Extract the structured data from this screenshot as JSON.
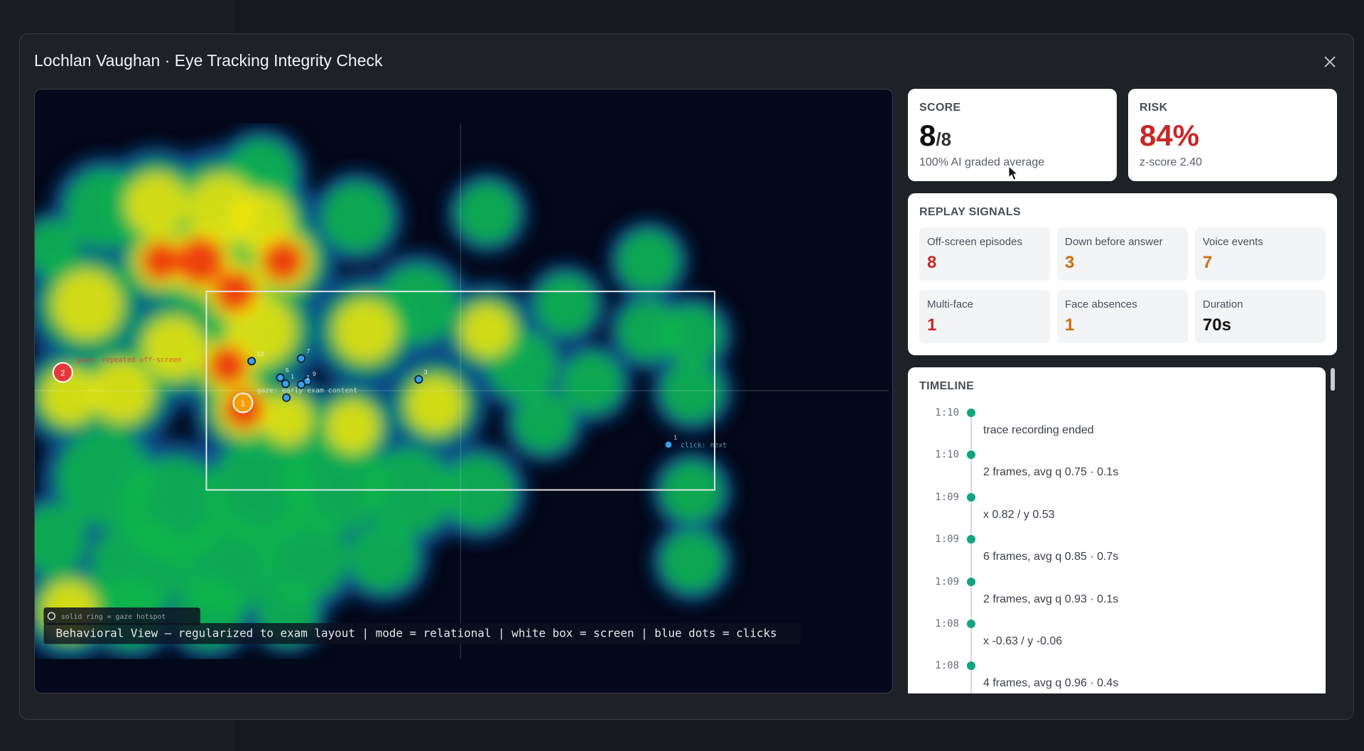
{
  "modal": {
    "title": "Lochlan Vaughan · Eye Tracking Integrity Check"
  },
  "score": {
    "label": "SCORE",
    "value": "8",
    "max": "/8",
    "note": "100% AI graded average"
  },
  "risk": {
    "label": "RISK",
    "value": "84%",
    "note": "z-score 2.40"
  },
  "signals": {
    "label": "REPLAY SIGNALS",
    "items": [
      {
        "name": "Off-screen episodes",
        "value": 8,
        "color": "#c62828"
      },
      {
        "name": "Down before answer",
        "value": 3,
        "color": "#c8700e"
      },
      {
        "name": "Voice events",
        "value": 7,
        "color": "#c8700e"
      },
      {
        "name": "Multi-face",
        "value": 1,
        "color": "#c62828"
      },
      {
        "name": "Face absences",
        "value": 1,
        "color": "#c8700e"
      },
      {
        "name": "Duration",
        "value": "70s",
        "color": "#111111"
      }
    ]
  },
  "timeline": {
    "label": "TIMELINE",
    "events": [
      {
        "time": "1:10",
        "detail": "trace recording ended"
      },
      {
        "time": "1:10",
        "detail": "2 frames, avg q 0.75 · 0.1s"
      },
      {
        "time": "1:09",
        "detail": "x 0.82 / y 0.53"
      },
      {
        "time": "1:09",
        "detail": "6 frames, avg q 0.85 · 0.7s"
      },
      {
        "time": "1:09",
        "detail": "2 frames, avg q 0.93 · 0.1s"
      },
      {
        "time": "1:08",
        "detail": "x -0.63 / y -0.06"
      },
      {
        "time": "1:08",
        "detail": "4 frames, avg q 0.96 · 0.4s"
      }
    ]
  },
  "heatmap": {
    "caption": "Behavioral View — regularized to exam layout | mode = relational | white box = screen | blue dots = clicks",
    "legend": "solid ring = gaze hotspot",
    "hotspots": [
      {
        "label": "1",
        "color": "#f59e0b"
      },
      {
        "label": "2",
        "color": "#e5383b"
      }
    ],
    "annotations": [
      "gaze: early exam content",
      "gaze: repeated off-screen",
      "click: next"
    ],
    "clicks": [
      "13",
      "7",
      "5",
      "1",
      "9",
      "1",
      "3",
      "1"
    ]
  }
}
